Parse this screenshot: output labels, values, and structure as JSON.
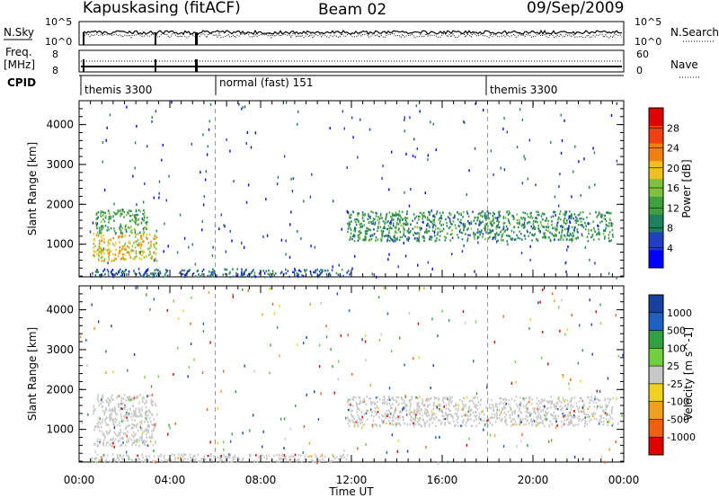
{
  "header": {
    "station": "Kapuskasing (fitACF)",
    "beam": "Beam 02",
    "date": "09/Sep/2009"
  },
  "top_panels": {
    "nsky_label": "N.Sky",
    "nsky_ticks": [
      "10^5",
      "10^0"
    ],
    "nsearch_label": "N.Search",
    "nsearch_ticks": [
      "10^5",
      "10^0"
    ],
    "freq_label": "Freq.",
    "freq_unit": "[MHz]",
    "freq_ticks": [
      "8",
      "8"
    ],
    "nave_label": "Nave",
    "nave_ticks": [
      "60",
      "0"
    ],
    "cpid_label": "CPID",
    "cpid_segments": [
      {
        "name": "themis 3300",
        "start_hour": 0
      },
      {
        "name": "normal (fast) 151",
        "start_hour": 6
      },
      {
        "name": "themis 3300",
        "start_hour": 18
      }
    ]
  },
  "colors": {
    "power_scale": [
      "#0000ff",
      "#2040c0",
      "#1f8060",
      "#40a040",
      "#80c040",
      "#f0c020",
      "#f08010",
      "#f04010",
      "#e00000"
    ],
    "velocity_scale": [
      "#1840a0",
      "#2060c0",
      "#30a040",
      "#70d040",
      "#c8c8c8",
      "#f0d020",
      "#f0a020",
      "#f06010",
      "#e00000"
    ]
  },
  "chart_data": [
    {
      "type": "heatmap",
      "quantity": "Power",
      "ylabel": "Slant Range [km]",
      "ylim": [
        180,
        4600
      ],
      "yticks": [
        1000,
        2000,
        3000,
        4000
      ],
      "xlim": [
        0,
        24
      ],
      "colorbar": {
        "label": "Power [dB]",
        "ticks": [
          "4",
          "8",
          "12",
          "16",
          "20",
          "24",
          "28"
        ],
        "range": [
          0,
          32
        ]
      },
      "regions": [
        {
          "t": [
            0.6,
            3.4
          ],
          "r": [
            600,
            1300
          ],
          "level": 20,
          "desc": "strong echo band"
        },
        {
          "t": [
            0.7,
            3.0
          ],
          "r": [
            1300,
            1900
          ],
          "level": 12
        },
        {
          "t": [
            11.8,
            23.5
          ],
          "r": [
            1100,
            1850
          ],
          "level": 10
        },
        {
          "t": [
            0.5,
            12.0
          ],
          "r": [
            200,
            400
          ],
          "level": 6
        }
      ]
    },
    {
      "type": "heatmap",
      "quantity": "Velocity",
      "ylabel": "Slant Range [km]",
      "xlabel": "Time UT",
      "ylim": [
        180,
        4600
      ],
      "yticks": [
        1000,
        2000,
        3000,
        4000
      ],
      "xlim": [
        0,
        24
      ],
      "xticks": [
        "00:00",
        "04:00",
        "08:00",
        "12:00",
        "16:00",
        "20:00",
        "00:00"
      ],
      "colorbar": {
        "label": "Velocity [m s^-1]",
        "ticks": [
          "1000",
          "500",
          "100",
          "25",
          "-25",
          "-100",
          "-500",
          "-1000"
        ]
      },
      "regions": [
        {
          "t": [
            0.6,
            3.4
          ],
          "r": [
            600,
            1900
          ],
          "value": 0
        },
        {
          "t": [
            11.8,
            23.5
          ],
          "r": [
            1100,
            1850
          ],
          "value": 0
        },
        {
          "t": [
            0.5,
            12.0
          ],
          "r": [
            200,
            400
          ],
          "value": 0
        }
      ]
    }
  ]
}
